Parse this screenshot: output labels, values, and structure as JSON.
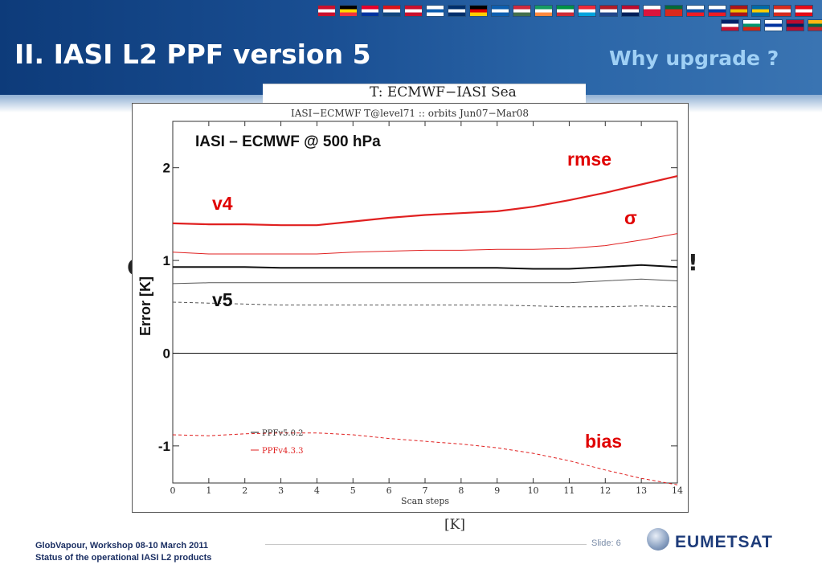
{
  "slide": {
    "title": "II. IASI L2 PPF version 5",
    "subtitle": "Why upgrade ?",
    "obscured_left": "C",
    "obscured_right": "!",
    "bottom_unit": "[K]",
    "footer_line1": "GlobVapour, Workshop 08-10 March 2011",
    "footer_line2": "Status of the operational IASI L2 products",
    "slide_number": "Slide: 6",
    "logo_text": "EUMETSAT",
    "logo_icon": "eumetsat-globe-icon",
    "top_figure_title": "T: ECMWF−IASI Sea"
  },
  "colors": {
    "banner": "#1a4f93",
    "subtitle": "#9fd0f5",
    "v4_series": "#e02020",
    "v5_series": "#111111",
    "annotation_red": "#e00000"
  },
  "chart_data": {
    "type": "line",
    "title": "IASI−ECMWF T@level71 ::  orbits Jun07−Mar08",
    "ylabel": "Error [K]",
    "xlabel": "Scan steps",
    "ylim": [
      -1.4,
      2.5
    ],
    "xlim": [
      0,
      14
    ],
    "yticks": [
      -1,
      0,
      1,
      2
    ],
    "xticks": [
      0,
      1,
      2,
      3,
      4,
      5,
      6,
      7,
      8,
      9,
      10,
      11,
      12,
      13,
      14
    ],
    "grid": false,
    "legend_position": "bottom-left",
    "legend": [
      "PPFv5.0.2",
      "PPFv4.3.3"
    ],
    "annotations": {
      "header": "IASI – ECMWF @ 500 hPa",
      "rmse": "rmse",
      "sigma": "σ",
      "v4": "v4",
      "v5": "v5",
      "bias": "bias"
    },
    "x": [
      0,
      1,
      2,
      3,
      4,
      5,
      6,
      7,
      8,
      9,
      10,
      11,
      12,
      13,
      14
    ],
    "series": [
      {
        "name": "PPFv4.3.3",
        "stat": "rmse",
        "values": [
          1.4,
          1.39,
          1.39,
          1.38,
          1.38,
          1.42,
          1.46,
          1.49,
          1.51,
          1.53,
          1.58,
          1.65,
          1.73,
          1.82,
          1.91
        ]
      },
      {
        "name": "PPFv4.3.3",
        "stat": "sigma",
        "values": [
          1.09,
          1.07,
          1.07,
          1.07,
          1.07,
          1.09,
          1.1,
          1.11,
          1.11,
          1.12,
          1.12,
          1.13,
          1.16,
          1.22,
          1.29
        ]
      },
      {
        "name": "PPFv4.3.3",
        "stat": "bias",
        "values": [
          -0.88,
          -0.89,
          -0.87,
          -0.86,
          -0.86,
          -0.88,
          -0.92,
          -0.95,
          -0.98,
          -1.02,
          -1.08,
          -1.16,
          -1.26,
          -1.35,
          -1.42
        ]
      },
      {
        "name": "PPFv5.0.2",
        "stat": "rmse",
        "values": [
          0.93,
          0.93,
          0.93,
          0.92,
          0.92,
          0.92,
          0.92,
          0.92,
          0.92,
          0.92,
          0.91,
          0.91,
          0.93,
          0.95,
          0.93
        ]
      },
      {
        "name": "PPFv5.0.2",
        "stat": "sigma",
        "values": [
          0.75,
          0.76,
          0.76,
          0.76,
          0.76,
          0.76,
          0.76,
          0.76,
          0.76,
          0.76,
          0.76,
          0.76,
          0.78,
          0.8,
          0.78
        ]
      },
      {
        "name": "PPFv5.0.2",
        "stat": "bias",
        "values": [
          0.55,
          0.54,
          0.53,
          0.52,
          0.52,
          0.52,
          0.52,
          0.52,
          0.52,
          0.52,
          0.51,
          0.5,
          0.5,
          0.51,
          0.5
        ]
      },
      {
        "name": "zero",
        "stat": "reference",
        "values": [
          0,
          0,
          0,
          0,
          0,
          0,
          0,
          0,
          0,
          0,
          0,
          0,
          0,
          0,
          0
        ]
      }
    ]
  }
}
